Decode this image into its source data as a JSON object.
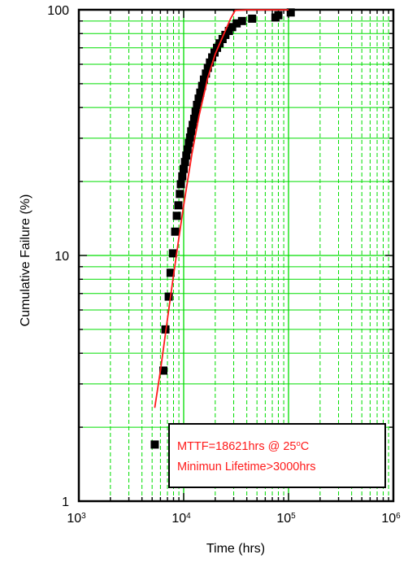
{
  "chart_data": {
    "type": "scatter",
    "title": "",
    "xlabel": "Time (hrs)",
    "ylabel": "Cumulative Failure (%)",
    "xscale": "log",
    "yscale": "log",
    "xlim": [
      1000,
      1000000
    ],
    "ylim": [
      1,
      100
    ],
    "grid": true,
    "grid_color": "#00dd00",
    "marker_color": "#000000",
    "fit_color": "#ff1a1a",
    "x_ticks": [
      {
        "base": "10",
        "exp": "3",
        "value": 1000
      },
      {
        "base": "10",
        "exp": "4",
        "value": 10000
      },
      {
        "base": "10",
        "exp": "5",
        "value": 100000
      },
      {
        "base": "10",
        "exp": "6",
        "value": 1000000
      }
    ],
    "y_ticks": [
      {
        "label": "1",
        "value": 1
      },
      {
        "label": "10",
        "value": 10
      },
      {
        "label": "100",
        "value": 100
      }
    ],
    "series": [
      {
        "kind": "markers",
        "points": [
          [
            5300,
            1.7
          ],
          [
            6400,
            3.4
          ],
          [
            6700,
            5.0
          ],
          [
            7200,
            6.8
          ],
          [
            7500,
            8.5
          ],
          [
            7900,
            10.2
          ],
          [
            8300,
            12.5
          ],
          [
            8600,
            14.5
          ],
          [
            8900,
            16.0
          ],
          [
            9200,
            17.8
          ],
          [
            9400,
            19.5
          ],
          [
            9700,
            21.0
          ],
          [
            10000,
            22.5
          ],
          [
            10300,
            24.0
          ],
          [
            10600,
            25.5
          ],
          [
            10900,
            27.0
          ],
          [
            11200,
            28.7
          ],
          [
            11500,
            30.2
          ],
          [
            11800,
            32.0
          ],
          [
            12200,
            34.0
          ],
          [
            12600,
            36.0
          ],
          [
            13000,
            38.5
          ],
          [
            13400,
            41.0
          ],
          [
            13900,
            43.5
          ],
          [
            14400,
            46.0
          ],
          [
            15000,
            49.0
          ],
          [
            15600,
            52.0
          ],
          [
            16300,
            55.0
          ],
          [
            17000,
            58.0
          ],
          [
            17800,
            61.0
          ],
          [
            18700,
            64.0
          ],
          [
            19700,
            67.0
          ],
          [
            20800,
            70.0
          ],
          [
            22000,
            73.0
          ],
          [
            23500,
            76.0
          ],
          [
            25000,
            79.0
          ],
          [
            27000,
            82.0
          ],
          [
            29000,
            85.0
          ],
          [
            32000,
            88.0
          ],
          [
            36000,
            90.0
          ],
          [
            45000,
            92.0
          ],
          [
            75000,
            93.0
          ],
          [
            80000,
            95.0
          ],
          [
            105000,
            97.5
          ]
        ]
      },
      {
        "kind": "fit-line",
        "points": [
          [
            5300,
            2.4
          ],
          [
            6000,
            3.4
          ],
          [
            7000,
            5.5
          ],
          [
            8000,
            8.3
          ],
          [
            9000,
            11.8
          ],
          [
            10000,
            16.0
          ],
          [
            12000,
            26.0
          ],
          [
            14000,
            37.0
          ],
          [
            17000,
            53.0
          ],
          [
            20000,
            66.0
          ],
          [
            24000,
            79.0
          ],
          [
            28000,
            92.0
          ],
          [
            31000,
            99.5
          ],
          [
            40000,
            99.9
          ],
          [
            100000,
            99.9
          ]
        ]
      }
    ],
    "annotation": {
      "line1_prefix": "MTTF=18621hrs @ 25",
      "line1_sup": "o",
      "line1_suffix": "C",
      "line2": "Minimun Lifetime>3000hrs"
    }
  }
}
